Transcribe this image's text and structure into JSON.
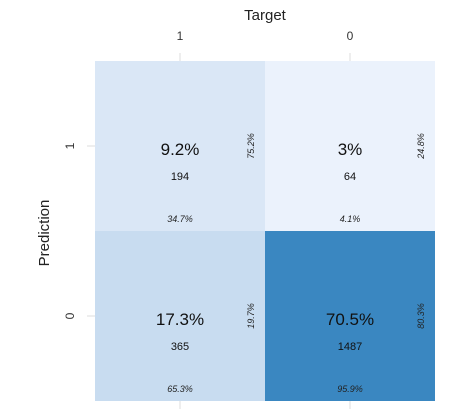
{
  "chart_data": {
    "type": "heatmap",
    "title": "",
    "xlabel": "Target",
    "ylabel": "Prediction",
    "x_categories": [
      "1",
      "0"
    ],
    "y_categories": [
      "1",
      "0"
    ],
    "cells": [
      {
        "target": "1",
        "prediction": "1",
        "count": "194",
        "overall_pct": "9.2%",
        "row_pct": "75.2%",
        "col_pct": "34.7%",
        "color": "#dae7f6"
      },
      {
        "target": "0",
        "prediction": "1",
        "count": "64",
        "overall_pct": "3%",
        "row_pct": "24.8%",
        "col_pct": "4.1%",
        "color": "#ebf2fc"
      },
      {
        "target": "1",
        "prediction": "0",
        "count": "365",
        "overall_pct": "17.3%",
        "row_pct": "19.7%",
        "col_pct": "65.3%",
        "color": "#c8dcf0"
      },
      {
        "target": "0",
        "prediction": "0",
        "count": "1487",
        "overall_pct": "70.5%",
        "row_pct": "80.3%",
        "col_pct": "95.9%",
        "color": "#3a87c1"
      }
    ]
  }
}
